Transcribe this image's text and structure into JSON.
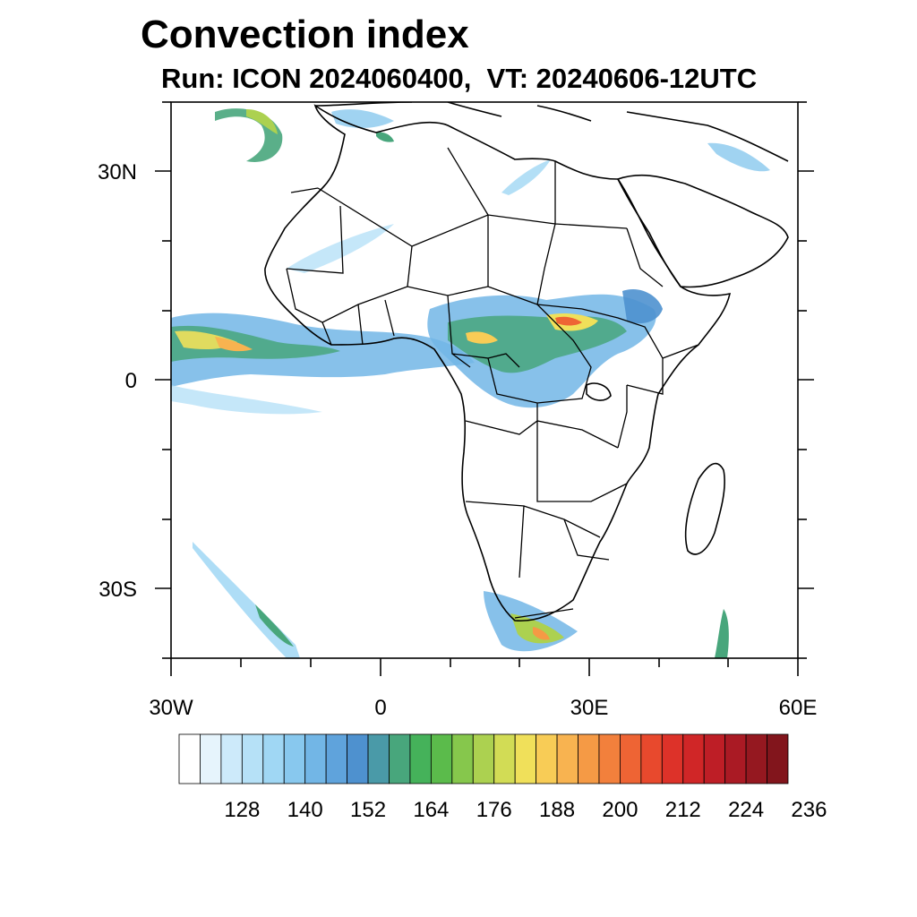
{
  "title": "Convection index",
  "subtitle": "Run: ICON 2024060400,  VT: 20240606-12UTC",
  "axes": {
    "lat_labels": [
      "30N",
      "0",
      "30S"
    ],
    "lon_labels": [
      "30W",
      "0",
      "30E",
      "60E"
    ]
  },
  "colorbar": {
    "labels": [
      "128",
      "140",
      "152",
      "164",
      "176",
      "188",
      "200",
      "212",
      "224",
      "236"
    ],
    "colors": [
      "#ffffff",
      "#e6f4fc",
      "#cdeafa",
      "#b6e1f7",
      "#a0d7f4",
      "#88c8ee",
      "#72b6e6",
      "#5fa3dc",
      "#4e91cf",
      "#4a9aa8",
      "#48a67c",
      "#45b25a",
      "#5bbb4b",
      "#86c74c",
      "#acd150",
      "#d2dc55",
      "#f0e05a",
      "#f8cc56",
      "#f8b350",
      "#f59a45",
      "#f2803c",
      "#ee6434",
      "#e8492d",
      "#dd3229",
      "#d02627",
      "#be1e26",
      "#aa1a24",
      "#951820",
      "#82151c"
    ]
  }
}
